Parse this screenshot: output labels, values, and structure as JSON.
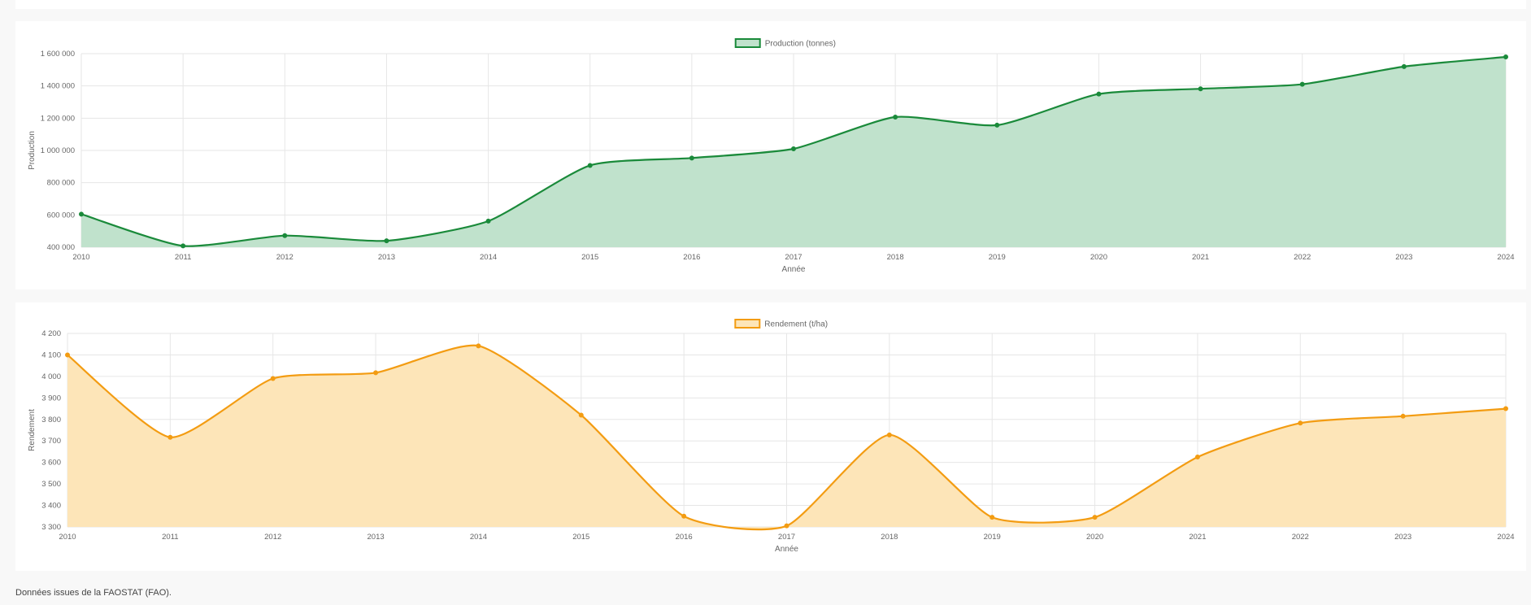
{
  "footer": {
    "source_text": "Données issues de la FAOSTAT (FAO)."
  },
  "chart_data": [
    {
      "type": "area",
      "categories": [
        "2010",
        "2011",
        "2012",
        "2013",
        "2014",
        "2015",
        "2016",
        "2017",
        "2018",
        "2019",
        "2020",
        "2021",
        "2022",
        "2023",
        "2024"
      ],
      "series": [
        {
          "name": "Production (tonnes)",
          "values": [
            605000,
            408000,
            472000,
            440000,
            562000,
            907000,
            953000,
            1010000,
            1207000,
            1157000,
            1350000,
            1382000,
            1410000,
            1520000,
            1580000
          ]
        }
      ],
      "xlabel": "Année",
      "ylabel": "Production",
      "ylim": [
        400000,
        1600000
      ],
      "yticks": [
        400000,
        600000,
        800000,
        1000000,
        1200000,
        1400000,
        1600000
      ],
      "ytick_labels": [
        "400 000",
        "600 000",
        "800 000",
        "1 000 000",
        "1 200 000",
        "1 400 000",
        "1 600 000"
      ],
      "grid": true,
      "legend": "top-center",
      "colors": {
        "line": "#1a8a3a",
        "fill": "#c0e2cc"
      }
    },
    {
      "type": "area",
      "categories": [
        "2010",
        "2011",
        "2012",
        "2013",
        "2014",
        "2015",
        "2016",
        "2017",
        "2018",
        "2019",
        "2020",
        "2021",
        "2022",
        "2023",
        "2024"
      ],
      "series": [
        {
          "name": "Rendement (t/ha)",
          "values": [
            4100,
            3717,
            3990,
            4017,
            4142,
            3820,
            3350,
            3305,
            3728,
            3345,
            3345,
            3625,
            3783,
            3815,
            3850
          ]
        }
      ],
      "xlabel": "Année",
      "ylabel": "Rendement",
      "ylim": [
        3300,
        4200
      ],
      "yticks": [
        3300,
        3400,
        3500,
        3600,
        3700,
        3800,
        3900,
        4000,
        4100,
        4200
      ],
      "ytick_labels": [
        "3 300",
        "3 400",
        "3 500",
        "3 600",
        "3 700",
        "3 800",
        "3 900",
        "4 000",
        "4 100",
        "4 200"
      ],
      "grid": true,
      "legend": "top-center",
      "colors": {
        "line": "#f39c12",
        "fill": "#fde5b8"
      }
    }
  ]
}
